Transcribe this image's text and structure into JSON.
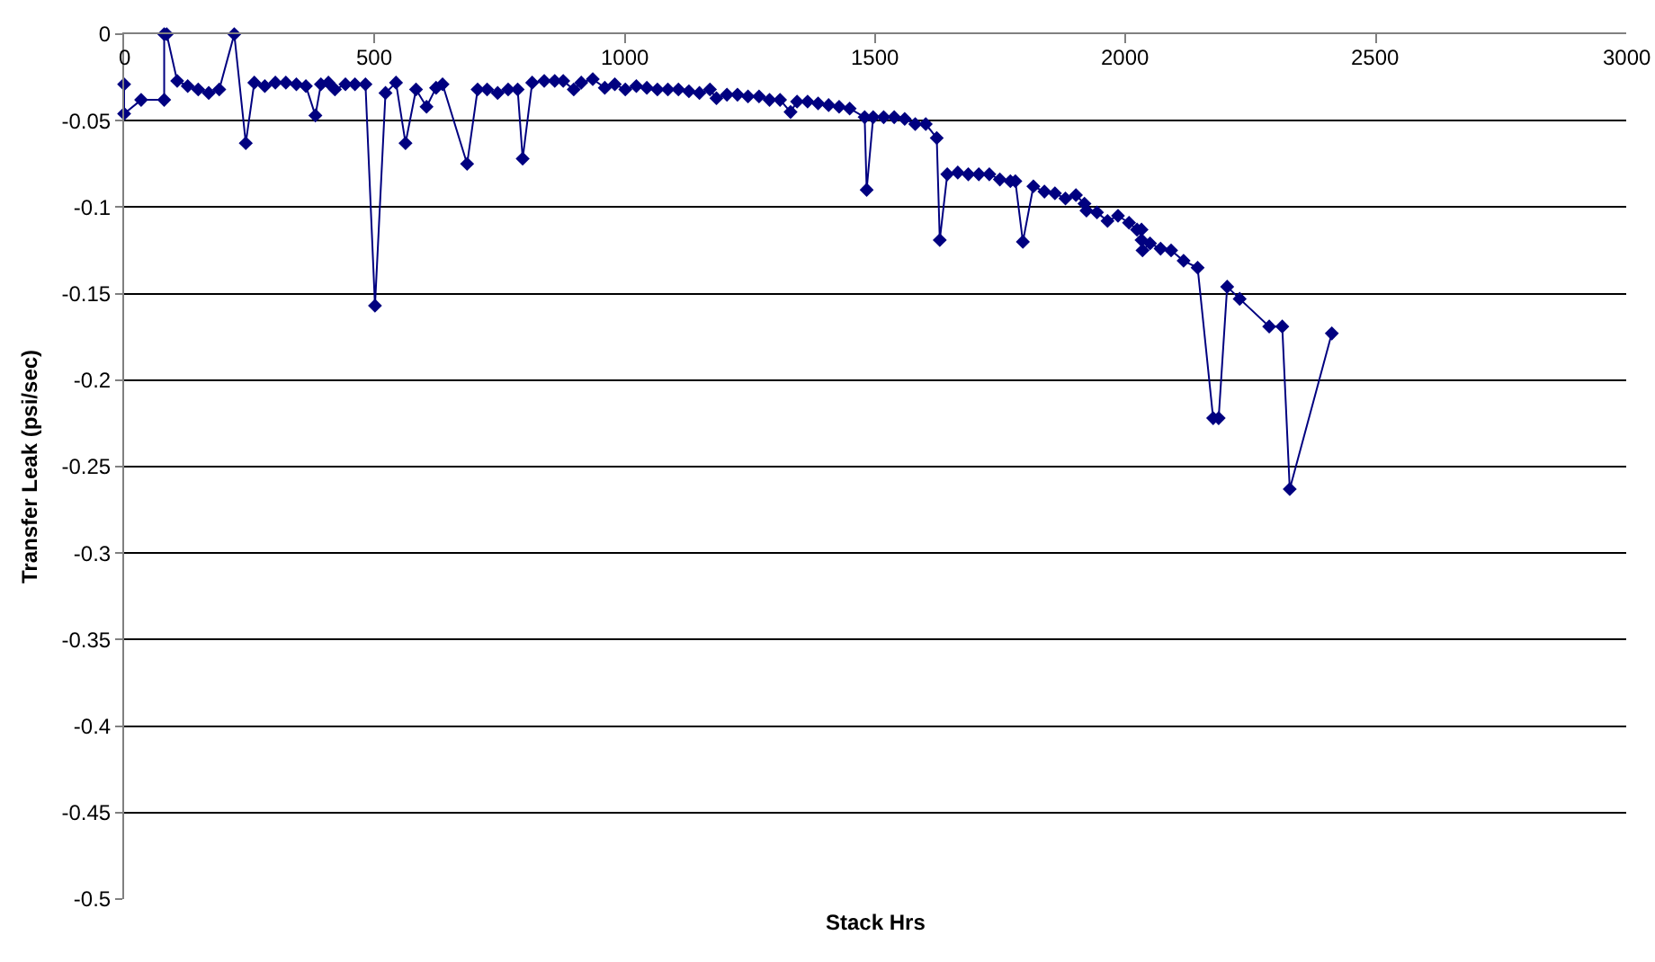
{
  "chart_data": {
    "type": "line",
    "xlabel": "Stack Hrs",
    "ylabel": "Transfer Leak (psi/sec)",
    "x": [
      0,
      0,
      34,
      80,
      80,
      85,
      106,
      127,
      148,
      169,
      190,
      220,
      243,
      260,
      281,
      302,
      323,
      344,
      363,
      382,
      393,
      408,
      421,
      442,
      461,
      482,
      501,
      522,
      543,
      562,
      583,
      604,
      623,
      636,
      685,
      706,
      725,
      746,
      767,
      786,
      796,
      815,
      839,
      860,
      877,
      898,
      913,
      936,
      960,
      980,
      1001,
      1023,
      1044,
      1065,
      1086,
      1107,
      1128,
      1149,
      1170,
      1183,
      1204,
      1225,
      1246,
      1268,
      1289,
      1310,
      1331,
      1344,
      1365,
      1386,
      1407,
      1428,
      1449,
      1479,
      1483,
      1496,
      1517,
      1538,
      1559,
      1580,
      1601,
      1623,
      1629,
      1644,
      1665,
      1686,
      1707,
      1728,
      1749,
      1770,
      1780,
      1795,
      1816,
      1838,
      1859,
      1880,
      1901,
      1918,
      1922,
      1943,
      1964,
      1985,
      2007,
      2023,
      2032,
      2032,
      2034,
      2049,
      2070,
      2091,
      2116,
      2144,
      2175,
      2186,
      2203,
      2228,
      2287,
      2313,
      2328,
      2412
    ],
    "series": [
      {
        "color": "#000080",
        "values": [
          -0.029,
          -0.046,
          -0.038,
          -0.038,
          0,
          0,
          -0.027,
          -0.03,
          -0.032,
          -0.034,
          -0.032,
          0,
          -0.063,
          -0.028,
          -0.03,
          -0.028,
          -0.028,
          -0.029,
          -0.03,
          -0.047,
          -0.029,
          -0.028,
          -0.032,
          -0.029,
          -0.029,
          -0.029,
          -0.157,
          -0.034,
          -0.028,
          -0.063,
          -0.032,
          -0.042,
          -0.031,
          -0.029,
          -0.075,
          -0.032,
          -0.032,
          -0.034,
          -0.032,
          -0.032,
          -0.072,
          -0.028,
          -0.027,
          -0.027,
          -0.027,
          -0.032,
          -0.028,
          -0.026,
          -0.031,
          -0.029,
          -0.032,
          -0.03,
          -0.031,
          -0.032,
          -0.032,
          -0.032,
          -0.033,
          -0.034,
          -0.032,
          -0.037,
          -0.035,
          -0.035,
          -0.036,
          -0.036,
          -0.038,
          -0.038,
          -0.045,
          -0.039,
          -0.039,
          -0.04,
          -0.041,
          -0.042,
          -0.043,
          -0.048,
          -0.09,
          -0.048,
          -0.048,
          -0.048,
          -0.049,
          -0.052,
          -0.052,
          -0.06,
          -0.119,
          -0.081,
          -0.08,
          -0.081,
          -0.081,
          -0.081,
          -0.084,
          -0.085,
          -0.085,
          -0.12,
          -0.088,
          -0.091,
          -0.092,
          -0.095,
          -0.093,
          -0.098,
          -0.102,
          -0.103,
          -0.108,
          -0.105,
          -0.109,
          -0.113,
          -0.113,
          -0.119,
          -0.125,
          -0.121,
          -0.124,
          -0.125,
          -0.131,
          -0.135,
          -0.222,
          -0.222,
          -0.146,
          -0.153,
          -0.169,
          -0.169,
          -0.263,
          -0.173
        ]
      }
    ],
    "xlim": [
      0,
      3000
    ],
    "xticks": [
      0,
      500,
      1000,
      1500,
      2000,
      2500,
      3000
    ],
    "ylim": [
      -0.5,
      0
    ],
    "yticks": [
      0,
      -0.05,
      -0.1,
      -0.15,
      -0.2,
      -0.25,
      -0.3,
      -0.35,
      -0.4,
      -0.45,
      -0.5
    ],
    "grid": "y",
    "marker": "diamond",
    "line_style": "solid"
  }
}
